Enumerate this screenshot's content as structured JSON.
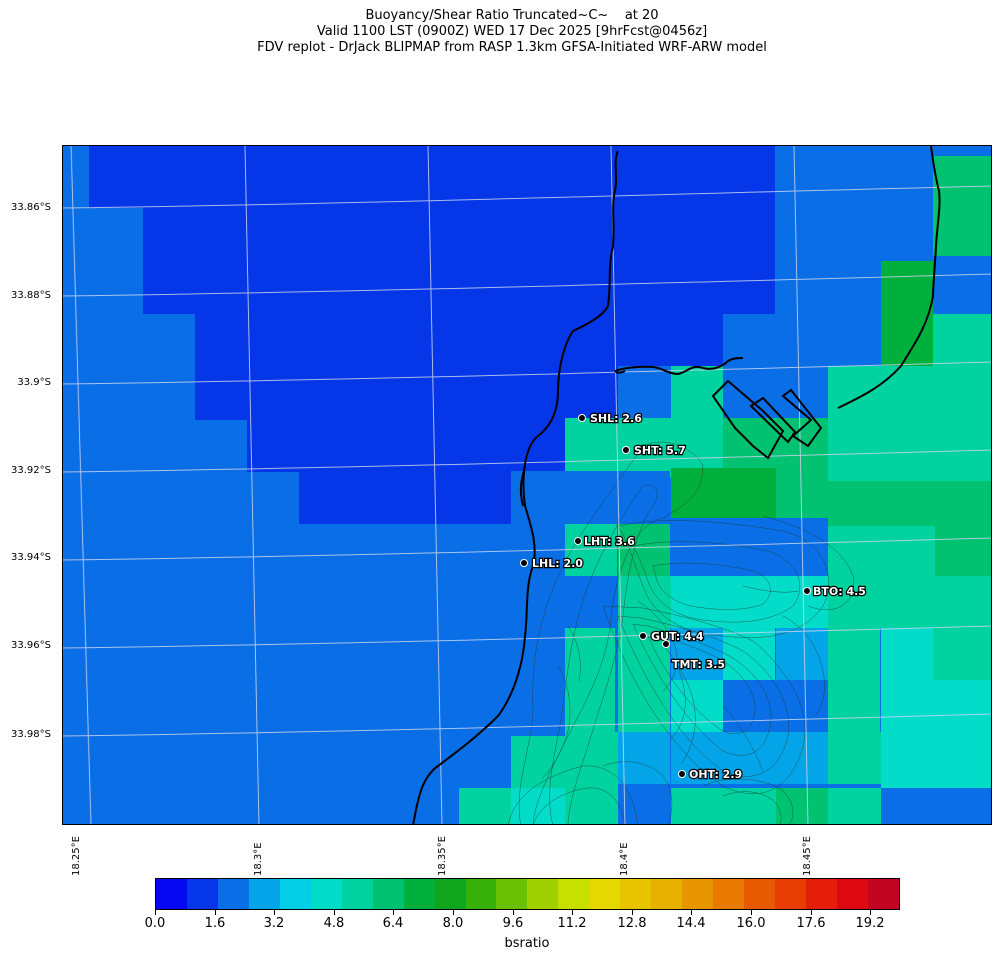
{
  "title": {
    "line1": "Buoyancy/Shear Ratio Truncated~C~    at 20",
    "line2": "Valid 1100 LST (0900Z) WED 17 Dec 2025 [9hrFcst@0456z]",
    "line3": "FDV replot - DrJack BLIPMAP from RASP 1.3km GFSA-Initiated WRF-ARW model"
  },
  "lat_labels": [
    "33.86°S",
    "33.88°S",
    "33.9°S",
    "33.92°S",
    "33.94°S",
    "33.96°S",
    "33.98°S"
  ],
  "lon_labels": [
    "18.25°E",
    "18.3°E",
    "18.35°E",
    "18.4°E",
    "18.45°E"
  ],
  "stations": [
    {
      "name": "SHL",
      "value": "2.6",
      "label": "SHL: 2.6"
    },
    {
      "name": "SHT",
      "value": "5.7",
      "label": "SHT: 5.7"
    },
    {
      "name": "LHT",
      "value": "3.6",
      "label": "LHT: 3.6"
    },
    {
      "name": "LHL",
      "value": "2.0",
      "label": "LHL: 2.0"
    },
    {
      "name": "BTO",
      "value": "4.5",
      "label": "BTO: 4.5"
    },
    {
      "name": "GUT",
      "value": "4.4",
      "label": "GUT: 4.4"
    },
    {
      "name": "TMT",
      "value": "3.5",
      "label": "TMT: 3.5"
    },
    {
      "name": "OHT",
      "value": "2.9",
      "label": "OHT: 2.9"
    }
  ],
  "colorbar": {
    "label": "bsratio",
    "tick_labels": [
      "0.0",
      "1.6",
      "3.2",
      "4.8",
      "6.4",
      "8.0",
      "9.6",
      "11.2",
      "12.8",
      "14.4",
      "16.0",
      "17.6",
      "19.2"
    ],
    "min": 0.0,
    "max": 20.0,
    "colors": [
      "#0508f0",
      "#0536e8",
      "#0a6ee6",
      "#04a5e8",
      "#05cfe6",
      "#02dcc9",
      "#00d2a0",
      "#00c270",
      "#00b03c",
      "#0fa61e",
      "#38b00a",
      "#6ac005",
      "#a0d000",
      "#c8e000",
      "#e4d800",
      "#e8c400",
      "#e8b000",
      "#e89600",
      "#e87a00",
      "#e85a00",
      "#e83c05",
      "#e41e08",
      "#dc0a10",
      "#c20522"
    ]
  },
  "map_colors": {
    "bin_1": "#0536e8",
    "bin_2": "#0a6ee6",
    "bin_3": "#04a5e8",
    "bin_5": "#02dcc9",
    "bin_6": "#00d2a0",
    "bin_7": "#00c270",
    "bin_8": "#00b03c",
    "coastline": "#000000",
    "terrain_contours": "#1a3a2a",
    "graticule": "#c8d4f0"
  }
}
